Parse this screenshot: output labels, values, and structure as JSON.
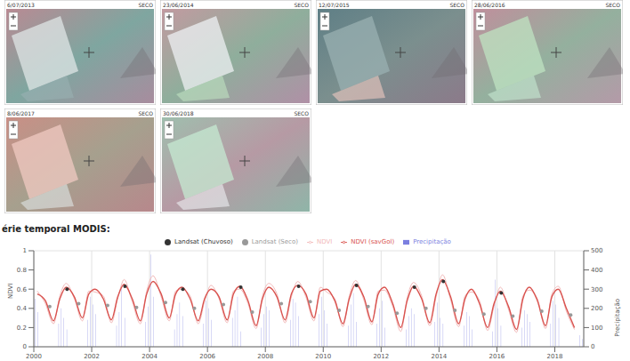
{
  "panels": [
    {
      "date": "6/07/2013",
      "label": "SECO"
    },
    {
      "date": "23/06/2014",
      "label": "SECO"
    },
    {
      "date": "12/07/2015",
      "label": "SECO"
    },
    {
      "date": "28/06/2016",
      "label": "SECO"
    },
    {
      "date": "8/06/2017",
      "label": "SECO"
    },
    {
      "date": "30/06/2018",
      "label": "SECO"
    }
  ],
  "section_title": "érie temporal MODIS:",
  "chart_data": {
    "type": "line",
    "ylabel": "NDVI",
    "y2label": "Precipitação",
    "legend": "top",
    "grid": true,
    "xlim": [
      2000,
      2019
    ],
    "xticks": [
      2000,
      2002,
      2004,
      2006,
      2008,
      2010,
      2012,
      2014,
      2016,
      2018
    ],
    "ylim": [
      0,
      1
    ],
    "yticks": [
      0,
      0.2,
      0.4,
      0.6,
      0.8,
      1
    ],
    "y2lim": [
      0,
      500
    ],
    "y2ticks": [
      0,
      100,
      200,
      300,
      400,
      500
    ],
    "series": [
      {
        "name": "NDVI",
        "type": "line",
        "color": "#f2b8b8",
        "x": [
          2000.12,
          2000.4,
          2000.68,
          2000.9,
          2001.12,
          2001.4,
          2001.68,
          2001.9,
          2002.12,
          2002.4,
          2002.68,
          2002.9,
          2003.12,
          2003.4,
          2003.68,
          2003.9,
          2004.12,
          2004.4,
          2004.68,
          2004.9,
          2005.12,
          2005.4,
          2005.68,
          2005.9,
          2006.12,
          2006.4,
          2006.68,
          2006.9,
          2007.12,
          2007.4,
          2007.68,
          2007.9,
          2008.12,
          2008.4,
          2008.68,
          2008.9,
          2009.12,
          2009.4,
          2009.68,
          2009.9,
          2010.12,
          2010.4,
          2010.68,
          2010.9,
          2011.12,
          2011.4,
          2011.68,
          2011.9,
          2012.12,
          2012.4,
          2012.68,
          2012.9,
          2013.12,
          2013.4,
          2013.68,
          2013.9,
          2014.12,
          2014.4,
          2014.68,
          2014.9,
          2015.12,
          2015.4,
          2015.68,
          2015.9,
          2016.12,
          2016.4,
          2016.68,
          2016.9,
          2017.12,
          2017.4,
          2017.68,
          2017.9,
          2018.12,
          2018.4,
          2018.68
        ],
        "values": [
          0.58,
          0.45,
          0.24,
          0.53,
          0.66,
          0.5,
          0.27,
          0.58,
          0.57,
          0.53,
          0.25,
          0.5,
          0.7,
          0.47,
          0.24,
          0.58,
          0.74,
          0.52,
          0.27,
          0.58,
          0.6,
          0.53,
          0.24,
          0.47,
          0.64,
          0.5,
          0.25,
          0.58,
          0.6,
          0.45,
          0.19,
          0.53,
          0.66,
          0.55,
          0.25,
          0.52,
          0.68,
          0.52,
          0.27,
          0.62,
          0.57,
          0.5,
          0.21,
          0.53,
          0.69,
          0.49,
          0.23,
          0.58,
          0.59,
          0.42,
          0.16,
          0.51,
          0.67,
          0.53,
          0.22,
          0.52,
          0.75,
          0.49,
          0.21,
          0.53,
          0.57,
          0.48,
          0.17,
          0.42,
          0.62,
          0.39,
          0.15,
          0.53,
          0.59,
          0.5,
          0.19,
          0.55,
          0.63,
          0.37,
          0.18
        ]
      },
      {
        "name": "NDVI (savGol)",
        "type": "line",
        "color": "#d9534f",
        "x": [
          2000.12,
          2000.4,
          2000.68,
          2000.9,
          2001.12,
          2001.4,
          2001.68,
          2001.9,
          2002.12,
          2002.4,
          2002.68,
          2002.9,
          2003.12,
          2003.4,
          2003.68,
          2003.9,
          2004.12,
          2004.4,
          2004.68,
          2004.9,
          2005.12,
          2005.4,
          2005.68,
          2005.9,
          2006.12,
          2006.4,
          2006.68,
          2006.9,
          2007.12,
          2007.4,
          2007.68,
          2007.9,
          2008.12,
          2008.4,
          2008.68,
          2008.9,
          2009.12,
          2009.4,
          2009.68,
          2009.9,
          2010.12,
          2010.4,
          2010.68,
          2010.9,
          2011.12,
          2011.4,
          2011.68,
          2011.9,
          2012.12,
          2012.4,
          2012.68,
          2012.9,
          2013.12,
          2013.4,
          2013.68,
          2013.9,
          2014.12,
          2014.4,
          2014.68,
          2014.9,
          2015.12,
          2015.4,
          2015.68,
          2015.9,
          2016.12,
          2016.4,
          2016.68,
          2016.9,
          2017.12,
          2017.4,
          2017.68,
          2017.9,
          2018.12,
          2018.4,
          2018.68
        ],
        "values": [
          0.55,
          0.48,
          0.27,
          0.5,
          0.62,
          0.52,
          0.3,
          0.55,
          0.6,
          0.5,
          0.28,
          0.52,
          0.65,
          0.5,
          0.27,
          0.55,
          0.68,
          0.55,
          0.3,
          0.55,
          0.62,
          0.5,
          0.27,
          0.5,
          0.6,
          0.52,
          0.28,
          0.55,
          0.63,
          0.48,
          0.22,
          0.5,
          0.62,
          0.52,
          0.28,
          0.55,
          0.64,
          0.55,
          0.3,
          0.58,
          0.6,
          0.48,
          0.24,
          0.5,
          0.65,
          0.52,
          0.26,
          0.55,
          0.62,
          0.45,
          0.2,
          0.48,
          0.63,
          0.5,
          0.25,
          0.55,
          0.7,
          0.52,
          0.24,
          0.5,
          0.6,
          0.45,
          0.2,
          0.45,
          0.58,
          0.42,
          0.18,
          0.5,
          0.62,
          0.48,
          0.22,
          0.52,
          0.6,
          0.4,
          0.2
        ]
      },
      {
        "name": "Landsat (Seco)",
        "type": "scatter",
        "color": "#999999",
        "x": [
          2000.55,
          2001.55,
          2002.55,
          2003.55,
          2004.55,
          2005.55,
          2006.55,
          2007.55,
          2008.55,
          2009.55,
          2010.55,
          2011.55,
          2012.55,
          2013.55,
          2014.55,
          2015.55,
          2016.55,
          2017.55,
          2018.55
        ],
        "values": [
          0.42,
          0.45,
          0.43,
          0.41,
          0.46,
          0.4,
          0.44,
          0.36,
          0.45,
          0.47,
          0.38,
          0.42,
          0.35,
          0.4,
          0.38,
          0.34,
          0.32,
          0.37,
          0.33
        ]
      },
      {
        "name": "Landsat (Chuvoso)",
        "type": "scatter",
        "color": "#333333",
        "x": [
          2001.15,
          2003.15,
          2005.15,
          2007.15,
          2009.15,
          2011.15,
          2013.15,
          2014.15,
          2016.15
        ],
        "values": [
          0.6,
          0.63,
          0.6,
          0.62,
          0.63,
          0.64,
          0.62,
          0.68,
          0.56
        ]
      },
      {
        "name": "Precipitação",
        "type": "bar",
        "axis": "y2",
        "color": "#7b7fe0",
        "x": [
          2000.04,
          2000.14,
          2000.86,
          2000.95,
          2001.04,
          2001.14,
          2001.86,
          2001.95,
          2002.04,
          2002.14,
          2002.86,
          2002.95,
          2003.04,
          2003.14,
          2003.86,
          2003.95,
          2004.04,
          2004.14,
          2004.86,
          2004.95,
          2005.04,
          2005.14,
          2005.86,
          2005.95,
          2006.04,
          2006.14,
          2006.86,
          2006.95,
          2007.04,
          2007.14,
          2007.86,
          2007.95,
          2008.04,
          2008.14,
          2008.86,
          2008.95,
          2009.04,
          2009.14,
          2009.86,
          2009.95,
          2010.04,
          2010.14,
          2010.86,
          2010.95,
          2011.04,
          2011.14,
          2011.86,
          2011.95,
          2012.04,
          2012.14,
          2012.86,
          2012.95,
          2013.04,
          2013.14,
          2013.86,
          2013.95,
          2014.04,
          2014.14,
          2014.86,
          2014.95,
          2015.04,
          2015.14,
          2015.86,
          2015.95,
          2016.04,
          2016.14,
          2016.86,
          2016.95,
          2017.04,
          2017.14,
          2017.86,
          2017.95,
          2018.04,
          2018.14,
          2018.86,
          2018.95
        ],
        "values": [
          250,
          180,
          120,
          200,
          150,
          90,
          140,
          260,
          220,
          170,
          110,
          180,
          300,
          150,
          130,
          210,
          480,
          260,
          90,
          170,
          230,
          160,
          120,
          240,
          200,
          140,
          150,
          190,
          260,
          80,
          100,
          170,
          210,
          190,
          140,
          250,
          230,
          160,
          170,
          260,
          190,
          120,
          110,
          220,
          280,
          130,
          120,
          200,
          240,
          100,
          90,
          160,
          200,
          170,
          130,
          230,
          150,
          120,
          110,
          180,
          160,
          90,
          80,
          350,
          200,
          110,
          100,
          190,
          170,
          130,
          120,
          240,
          220,
          150,
          60,
          40
        ]
      }
    ]
  }
}
